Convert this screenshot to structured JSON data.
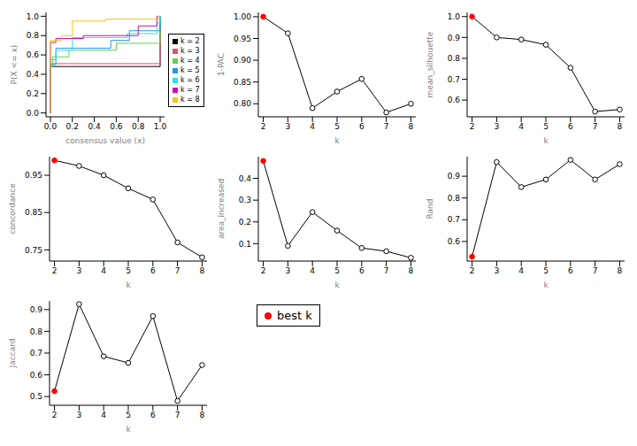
{
  "chart_data": [
    {
      "type": "line",
      "title": null,
      "x_label": "consensus value (x)",
      "y_label": "P(X <= x)",
      "line_style": "step",
      "xlim": [
        -0.04,
        1.04
      ],
      "ylim": [
        -0.04,
        1.04
      ],
      "xticks": [
        {
          "value": 0,
          "label": "0.0"
        },
        {
          "value": 0.2,
          "label": "0.2"
        },
        {
          "value": 0.4,
          "label": "0.4"
        },
        {
          "value": 0.6,
          "label": "0.6"
        },
        {
          "value": 0.8,
          "label": "0.8"
        },
        {
          "value": 1,
          "label": "1.0"
        }
      ],
      "yticks": [
        {
          "value": 0,
          "label": "0.0"
        },
        {
          "value": 0.2,
          "label": "0.2"
        },
        {
          "value": 0.4,
          "label": "0.4"
        },
        {
          "value": 0.6,
          "label": "0.6"
        },
        {
          "value": 0.8,
          "label": "0.8"
        },
        {
          "value": 1,
          "label": "1.0"
        }
      ],
      "legend": "right",
      "series": [
        {
          "name": "k = 2",
          "color": "#000000",
          "x": [
            0,
            0,
            1,
            1
          ],
          "values": [
            0,
            0.48,
            0.48,
            1
          ]
        },
        {
          "name": "k = 3",
          "color": "#df536b",
          "x": [
            0,
            0,
            1,
            1
          ],
          "values": [
            0,
            0.51,
            0.51,
            1
          ]
        },
        {
          "name": "k = 4",
          "color": "#61d04f",
          "x": [
            0,
            0,
            0.02,
            0.17,
            0.6,
            1,
            1
          ],
          "values": [
            0,
            0.48,
            0.58,
            0.65,
            0.72,
            0.72,
            1
          ]
        },
        {
          "name": "k = 5",
          "color": "#2297e6",
          "x": [
            0,
            0,
            0.05,
            0.55,
            0.72,
            1,
            1
          ],
          "values": [
            0,
            0.5,
            0.67,
            0.75,
            0.85,
            0.85,
            1
          ]
        },
        {
          "name": "k = 6",
          "color": "#28e2e5",
          "x": [
            0,
            0,
            0.05,
            0.2,
            0.7,
            0.97,
            1,
            1
          ],
          "values": [
            0,
            0.55,
            0.65,
            0.78,
            0.82,
            0.93,
            0.93,
            1
          ]
        },
        {
          "name": "k = 7",
          "color": "#cd0bbc",
          "x": [
            0,
            0,
            0.05,
            0.3,
            0.8,
            0.97,
            1
          ],
          "values": [
            0,
            0.73,
            0.77,
            0.8,
            0.9,
            1,
            1
          ]
        },
        {
          "name": "k = 8",
          "color": "#f5c710",
          "x": [
            0,
            0,
            0.1,
            0.2,
            0.5,
            0.98,
            1
          ],
          "values": [
            0,
            0.75,
            0.8,
            0.95,
            0.97,
            1,
            1
          ]
        }
      ]
    },
    {
      "type": "line",
      "x_label": "k",
      "y_label": "1-PAC",
      "best_k": 2,
      "xlim": [
        1.8,
        8.2
      ],
      "xticks": [
        2,
        3,
        4,
        5,
        6,
        7,
        8
      ],
      "ylim": [
        0.77,
        1.01
      ],
      "yticks": [
        {
          "value": 0.8,
          "label": "0.80"
        },
        {
          "value": 0.85,
          "label": "0.85"
        },
        {
          "value": 0.9,
          "label": "0.90"
        },
        {
          "value": 0.95,
          "label": "0.95"
        },
        {
          "value": 1,
          "label": "1.00"
        }
      ],
      "x": [
        2,
        3,
        4,
        5,
        6,
        7,
        8
      ],
      "values": [
        1.0,
        0.962,
        0.79,
        0.828,
        0.857,
        0.78,
        0.8
      ]
    },
    {
      "type": "line",
      "x_label": "k",
      "y_label": "mean_silhouette",
      "best_k": 2,
      "xlim": [
        1.8,
        8.2
      ],
      "xticks": [
        2,
        3,
        4,
        5,
        6,
        7,
        8
      ],
      "ylim": [
        0.52,
        1.02
      ],
      "yticks": [
        0.6,
        0.7,
        0.8,
        0.9,
        {
          "value": 1,
          "label": "1.0"
        }
      ],
      "x": [
        2,
        3,
        4,
        5,
        6,
        7,
        8
      ],
      "values": [
        1.0,
        0.9,
        0.89,
        0.865,
        0.755,
        0.545,
        0.555
      ]
    },
    {
      "type": "line",
      "x_label": "k",
      "y_label": "concordance",
      "best_k": 2,
      "xlim": [
        1.8,
        8.2
      ],
      "xticks": [
        2,
        3,
        4,
        5,
        6,
        7,
        8
      ],
      "ylim": [
        0.72,
        1.0
      ],
      "yticks": [
        0.75,
        0.85,
        0.95
      ],
      "x": [
        2,
        3,
        4,
        5,
        6,
        7,
        8
      ],
      "values": [
        0.99,
        0.975,
        0.95,
        0.915,
        0.885,
        0.77,
        0.73
      ]
    },
    {
      "type": "line",
      "x_label": "k",
      "y_label": "area_increased",
      "best_k": 2,
      "xlim": [
        1.8,
        8.2
      ],
      "xticks": [
        2,
        3,
        4,
        5,
        6,
        7,
        8
      ],
      "ylim": [
        0.02,
        0.5
      ],
      "yticks": [
        0.1,
        0.2,
        0.3,
        0.4
      ],
      "x": [
        2,
        3,
        4,
        5,
        6,
        7,
        8
      ],
      "values": [
        0.48,
        0.09,
        0.245,
        0.16,
        0.08,
        0.065,
        0.035
      ]
    },
    {
      "type": "line",
      "x_label": "k",
      "y_label": "Rand",
      "best_k": 2,
      "xlim": [
        1.8,
        8.2
      ],
      "xticks": [
        2,
        3,
        4,
        5,
        6,
        7,
        8
      ],
      "ylim": [
        0.51,
        0.99
      ],
      "yticks": [
        0.6,
        0.7,
        0.8,
        0.9
      ],
      "x": [
        2,
        3,
        4,
        5,
        6,
        7,
        8
      ],
      "values": [
        0.53,
        0.965,
        0.85,
        0.885,
        0.975,
        0.885,
        0.955
      ]
    },
    {
      "type": "line",
      "x_label": "k",
      "y_label": "Jaccard",
      "best_k": 2,
      "xlim": [
        1.8,
        8.2
      ],
      "xticks": [
        2,
        3,
        4,
        5,
        6,
        7,
        8
      ],
      "ylim": [
        0.46,
        0.94
      ],
      "yticks": [
        0.5,
        0.6,
        0.7,
        0.8,
        0.9
      ],
      "x": [
        2,
        3,
        4,
        5,
        6,
        7,
        8
      ],
      "values": [
        0.525,
        0.925,
        0.685,
        0.655,
        0.87,
        0.48,
        0.645
      ]
    }
  ],
  "best_k_legend": {
    "label": "best k",
    "color": "#ff0000"
  }
}
